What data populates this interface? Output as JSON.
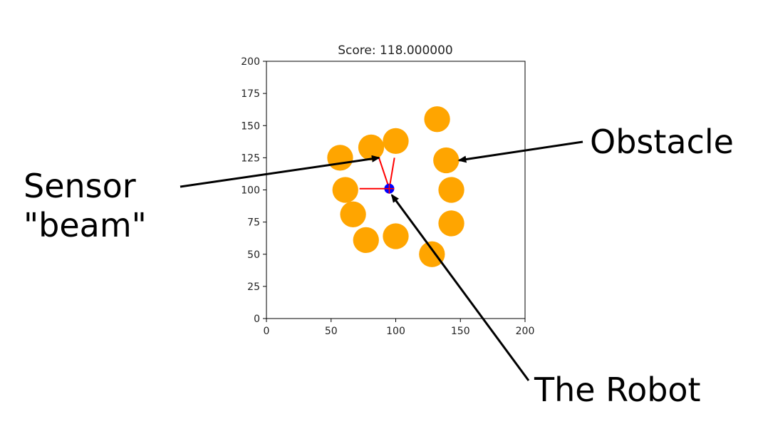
{
  "chart_data": {
    "type": "scatter",
    "title": "Score: 118.000000",
    "xlim": [
      0,
      200
    ],
    "ylim": [
      0,
      200
    ],
    "xticks": [
      0,
      50,
      100,
      150,
      200
    ],
    "yticks": [
      0,
      25,
      50,
      75,
      100,
      125,
      150,
      175,
      200
    ],
    "xlabel": "",
    "ylabel": "",
    "grid": false,
    "obstacle_radius": 10,
    "series": [
      {
        "points": [
          {
            "x": 132,
            "y": 155
          },
          {
            "x": 100,
            "y": 138
          },
          {
            "x": 81,
            "y": 133
          },
          {
            "x": 57,
            "y": 125
          },
          {
            "x": 139,
            "y": 123
          },
          {
            "x": 61,
            "y": 100
          },
          {
            "x": 143,
            "y": 100
          },
          {
            "x": 67,
            "y": 81
          },
          {
            "x": 143,
            "y": 74
          },
          {
            "x": 77,
            "y": 61
          },
          {
            "x": 100,
            "y": 64
          },
          {
            "x": 128,
            "y": 50
          }
        ]
      },
      {
        "points": [
          {
            "x": 95,
            "y": 101
          }
        ]
      }
    ],
    "beams": [
      {
        "x1": 95,
        "y1": 101,
        "x2": 87,
        "y2": 125
      },
      {
        "x1": 95,
        "y1": 101,
        "x2": 99,
        "y2": 125
      },
      {
        "x1": 95,
        "y1": 101,
        "x2": 72,
        "y2": 101
      }
    ],
    "annotations": [
      {
        "lines": [
          "Sensor",
          "\"beam\""
        ],
        "x": 87,
        "y": 125
      },
      {
        "lines": [
          "Obstacle"
        ],
        "x": 149,
        "y": 123
      },
      {
        "lines": [
          "The Robot"
        ],
        "x": 97,
        "y": 96
      }
    ],
    "colors": {
      "obstacle": "#ffa500",
      "robot": "#0000ff",
      "beam": "#ff0000",
      "robot_marker": "#ff0000",
      "arrow": "#000000"
    }
  }
}
